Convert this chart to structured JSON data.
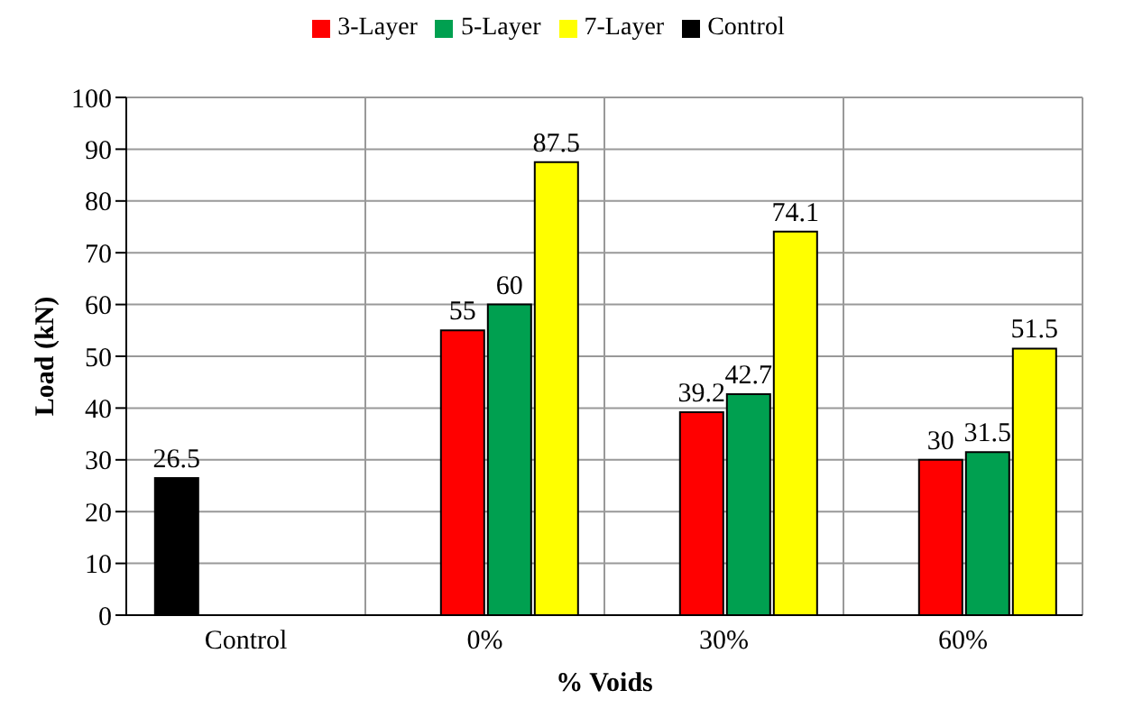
{
  "chart_data": {
    "type": "bar",
    "xlabel": "% Voids",
    "ylabel": "Load (kN)",
    "categories": [
      "Control",
      "0%",
      "30%",
      "60%"
    ],
    "series": [
      {
        "name": "Control",
        "color": "#000000",
        "values": [
          26.5,
          null,
          null,
          null
        ]
      },
      {
        "name": "3-Layer",
        "color": "#ff0000",
        "values": [
          null,
          55,
          39.2,
          30
        ]
      },
      {
        "name": "5-Layer",
        "color": "#00a050",
        "values": [
          null,
          60,
          42.7,
          31.5
        ]
      },
      {
        "name": "7-Layer",
        "color": "#ffff00",
        "values": [
          null,
          87.5,
          74.1,
          51.5
        ]
      }
    ],
    "ylim": [
      0,
      100
    ],
    "yticks": [
      0,
      10,
      20,
      30,
      40,
      50,
      60,
      70,
      80,
      90,
      100
    ],
    "grid": true,
    "legend": "top",
    "data_labels": true
  }
}
